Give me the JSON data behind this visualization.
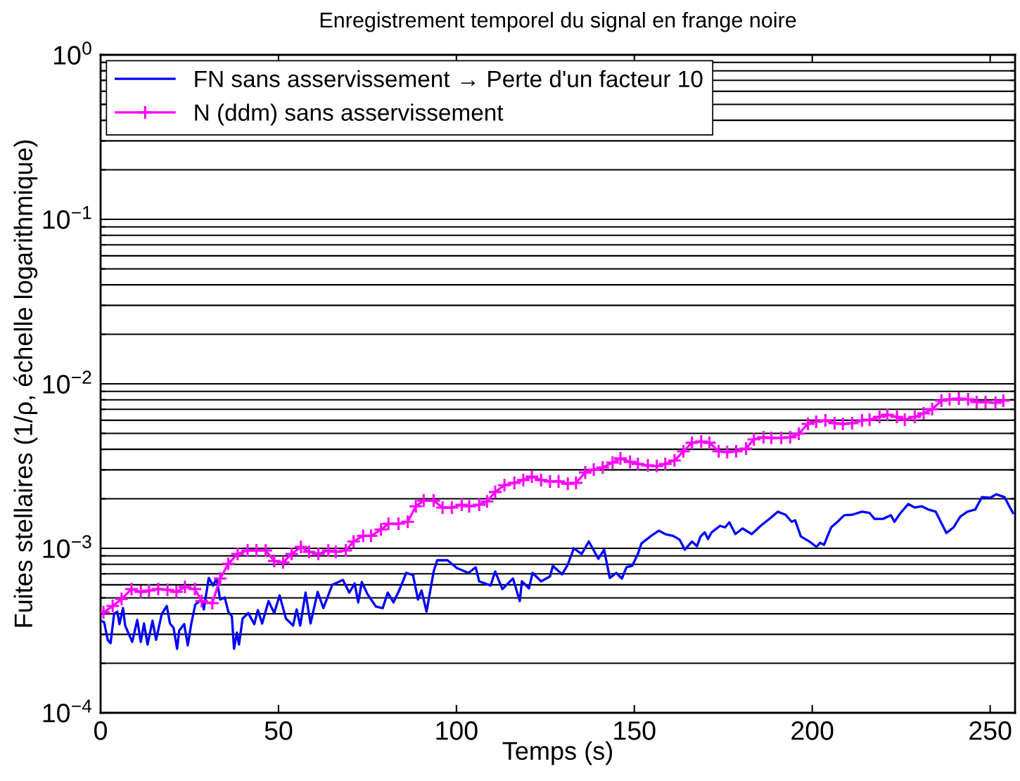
{
  "chart_data": {
    "type": "line",
    "title": "Enregistrement temporel du signal en frange noire",
    "xlabel": "Temps (s)",
    "ylabel": "Fuites stellaires (1/ρ, échelle logarithmique)",
    "xlim": [
      0,
      257
    ],
    "xticks": [
      0,
      50,
      100,
      150,
      200,
      250
    ],
    "ylim": [
      0.0001,
      1
    ],
    "yticks": [
      {
        "value": 0.0001,
        "label": "10$^{−4}$"
      },
      {
        "value": 0.001,
        "label": "10$^{−3}$"
      },
      {
        "value": 0.01,
        "label": "10$^{−2}$"
      },
      {
        "value": 0.1,
        "label": "10$^{−1}$"
      },
      {
        "value": 1,
        "label": "10$^{0}$"
      }
    ],
    "log": "y",
    "grid": "y",
    "legend": "top left",
    "series": [
      {
        "name": "FN sans asservissement → Perte d'un facteur 10",
        "color": "#0000ff",
        "marker": "none",
        "x": [
          0.0,
          1.0,
          2.0,
          2.8,
          3.8,
          4.7,
          5.3,
          6.3,
          6.9,
          8.9,
          10.3,
          11.3,
          12.2,
          13.2,
          14.6,
          15.6,
          17.2,
          18.6,
          19.5,
          20.5,
          21.5,
          22.1,
          23.5,
          24.5,
          25.5,
          26.6,
          28.4,
          29.0,
          30.4,
          31.6,
          32.6,
          33.6,
          34.9,
          35.9,
          36.9,
          37.5,
          38.3,
          38.9,
          39.9,
          41.5,
          43.2,
          44.2,
          45.4,
          47.2,
          48.8,
          50.3,
          52.1,
          54.1,
          55.1,
          56.1,
          57.6,
          59.0,
          61.0,
          62.6,
          65.1,
          68.1,
          69.9,
          71.4,
          72.4,
          73.4,
          75.0,
          77.4,
          79.3,
          80.7,
          82.3,
          83.9,
          85.9,
          87.8,
          89.2,
          90.2,
          91.6,
          93.6,
          94.6,
          97.5,
          100.1,
          103.4,
          105.4,
          106.4,
          109.6,
          110.9,
          112.9,
          115.9,
          117.8,
          118.4,
          120.4,
          121.4,
          123.8,
          126.3,
          127.1,
          129.7,
          131.3,
          133.0,
          135.2,
          137.2,
          139.9,
          141.5,
          143.1,
          144.9,
          146.5,
          147.8,
          149.4,
          151.0,
          152.0,
          154.7,
          156.9,
          158.7,
          160.9,
          162.7,
          164.2,
          166.2,
          167.6,
          168.6,
          169.8,
          170.7,
          171.7,
          174.1,
          175.5,
          176.7,
          178.4,
          180.4,
          183.0,
          185.5,
          188.3,
          190.3,
          192.5,
          194.2,
          195.2,
          196.8,
          199.2,
          201.2,
          202.2,
          203.3,
          205.3,
          207.1,
          209.0,
          211.2,
          214.0,
          216.1,
          217.5,
          219.9,
          222.1,
          223.1,
          224.8,
          227.0,
          228.8,
          230.8,
          232.7,
          234.7,
          237.7,
          239.7,
          241.6,
          243.6,
          245.8,
          247.7,
          250.1,
          251.7,
          254.0,
          256.4
        ],
        "values": [
          0.000363,
          0.000356,
          0.000278,
          0.000265,
          0.0004,
          0.000412,
          0.000346,
          0.000433,
          0.000339,
          0.00027,
          0.000367,
          0.00027,
          0.000349,
          0.00026,
          0.000363,
          0.000278,
          0.0004,
          0.000446,
          0.000349,
          0.000329,
          0.000245,
          0.000316,
          0.000346,
          0.000257,
          0.000349,
          0.000455,
          0.000488,
          0.000425,
          0.000661,
          0.000594,
          0.000655,
          0.000488,
          0.000502,
          0.000412,
          0.000385,
          0.000245,
          0.000307,
          0.00026,
          0.000374,
          0.000404,
          0.000346,
          0.000421,
          0.000349,
          0.000478,
          0.000404,
          0.000517,
          0.000374,
          0.000339,
          0.000425,
          0.000339,
          0.000538,
          0.000349,
          0.000543,
          0.000433,
          0.000599,
          0.000642,
          0.000538,
          0.000611,
          0.000469,
          0.000624,
          0.000527,
          0.000442,
          0.000433,
          0.000538,
          0.000469,
          0.000554,
          0.000709,
          0.000688,
          0.000488,
          0.000554,
          0.000412,
          0.000723,
          0.000846,
          0.000846,
          0.000759,
          0.000709,
          0.000767,
          0.00063,
          0.000594,
          0.000723,
          0.000565,
          0.000655,
          0.000478,
          0.00063,
          0.000571,
          0.000709,
          0.00063,
          0.000675,
          0.000782,
          0.000695,
          0.000797,
          0.001,
          0.000924,
          0.0011,
          0.000863,
          0.000981,
          0.000661,
          0.000709,
          0.000655,
          0.000767,
          0.000782,
          0.000924,
          0.00107,
          0.00119,
          0.00128,
          0.00122,
          0.00119,
          0.00113,
          0.000981,
          0.0011,
          0.00103,
          0.00118,
          0.00125,
          0.00114,
          0.00125,
          0.00137,
          0.00134,
          0.00144,
          0.00122,
          0.00132,
          0.00122,
          0.00137,
          0.00153,
          0.00167,
          0.0016,
          0.00145,
          0.00148,
          0.00118,
          0.0011,
          0.00102,
          0.00108,
          0.00105,
          0.00134,
          0.00145,
          0.00159,
          0.0016,
          0.00167,
          0.00164,
          0.00151,
          0.00151,
          0.00159,
          0.00145,
          0.00164,
          0.00186,
          0.00177,
          0.0018,
          0.00172,
          0.00167,
          0.00124,
          0.00134,
          0.00156,
          0.00167,
          0.00172,
          0.00205,
          0.00203,
          0.00213,
          0.00205,
          0.00164
        ]
      },
      {
        "name": "N (ddm) sans asservissement",
        "color": "#ff00ff",
        "marker": "cross",
        "x": [
          0.8,
          3.4,
          5.9,
          8.7,
          11.3,
          13.6,
          16.2,
          18.8,
          21.3,
          23.7,
          26.5,
          28.4,
          31.4,
          33.6,
          35.9,
          38.5,
          41.3,
          43.8,
          46.4,
          48.8,
          51.3,
          53.7,
          56.3,
          58.6,
          61.2,
          64.0,
          66.1,
          68.9,
          71.1,
          73.8,
          76.0,
          78.8,
          80.9,
          83.7,
          86.3,
          88.6,
          90.8,
          93.6,
          96.1,
          98.7,
          101.5,
          103.6,
          106.4,
          108.6,
          110.9,
          113.5,
          116.3,
          118.8,
          121.2,
          123.8,
          126.3,
          128.7,
          131.3,
          133.6,
          136.2,
          138.6,
          141.1,
          143.9,
          146.1,
          148.8,
          151.0,
          153.8,
          156.3,
          158.7,
          161.3,
          163.8,
          166.2,
          168.8,
          171.1,
          173.7,
          176.1,
          178.6,
          181.4,
          183.6,
          186.3,
          188.5,
          191.3,
          193.8,
          196.2,
          198.8,
          201.1,
          203.7,
          206.3,
          208.6,
          211.2,
          214.0,
          216.1,
          218.9,
          221.1,
          223.8,
          226.0,
          228.8,
          231.3,
          233.7,
          236.3,
          238.6,
          241.2,
          243.8,
          246.2,
          248.7,
          251.5,
          253.7
        ],
        "values": [
          0.000408,
          0.000446,
          0.000492,
          0.000565,
          0.000543,
          0.000554,
          0.000565,
          0.00056,
          0.000543,
          0.000582,
          0.000565,
          0.000478,
          0.000464,
          0.000655,
          0.000805,
          0.000924,
          0.000971,
          0.000971,
          0.000971,
          0.000838,
          0.000821,
          0.000924,
          0.00102,
          0.000952,
          0.000924,
          0.000971,
          0.000952,
          0.000971,
          0.0011,
          0.00119,
          0.00119,
          0.0013,
          0.00141,
          0.00141,
          0.00145,
          0.0018,
          0.00195,
          0.00195,
          0.00177,
          0.00177,
          0.00184,
          0.0018,
          0.00184,
          0.00193,
          0.0022,
          0.00242,
          0.0025,
          0.0026,
          0.00273,
          0.0026,
          0.00255,
          0.00255,
          0.00247,
          0.0025,
          0.00289,
          0.00301,
          0.0031,
          0.00332,
          0.00352,
          0.00335,
          0.00326,
          0.00319,
          0.00316,
          0.00326,
          0.00342,
          0.00389,
          0.00438,
          0.00446,
          0.00438,
          0.00389,
          0.00385,
          0.00389,
          0.00404,
          0.0046,
          0.00473,
          0.00469,
          0.00469,
          0.00473,
          0.00497,
          0.00571,
          0.00588,
          0.00599,
          0.00576,
          0.00571,
          0.00576,
          0.00599,
          0.00605,
          0.0063,
          0.00649,
          0.0063,
          0.00605,
          0.0063,
          0.00661,
          0.00702,
          0.0079,
          0.00805,
          0.00813,
          0.00805,
          0.00774,
          0.00774,
          0.00767,
          0.0079
        ]
      }
    ]
  }
}
